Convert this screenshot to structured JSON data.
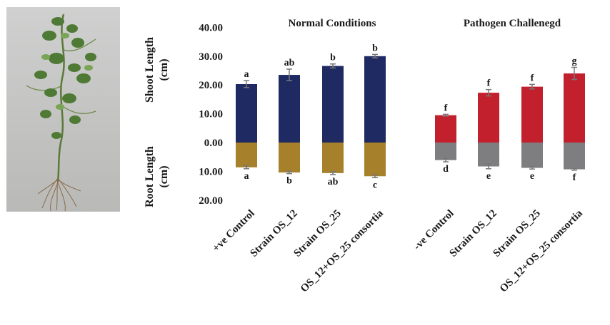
{
  "photo": {
    "icon": "pea-plant-photo"
  },
  "chart_data": {
    "type": "bar",
    "subtype": "diverging-stacked",
    "categories": [
      "+ve Control",
      "Strain OS_12",
      "Strain OS_25",
      "OS_12+OS_25 consortia",
      "-ve Control",
      "Strain OS_12",
      "Strain OS_25",
      "OS_12+OS_25 consortia"
    ],
    "groups": [
      "Normal Conditions",
      "Pathogen Challenegd"
    ],
    "group_of_category": [
      0,
      0,
      0,
      0,
      1,
      1,
      1,
      1
    ],
    "y_tick_labels": [
      "40.00",
      "30.00",
      "20.00",
      "10.00",
      "0.00",
      "10.00",
      "20.00"
    ],
    "y_tick_values": [
      40,
      30,
      20,
      10,
      0,
      -10,
      -20
    ],
    "ylim": [
      -20,
      40
    ],
    "ylabel_top": "Shoot Length (cm)",
    "ylabel_top_lines": [
      "Shoot Length",
      "(cm)"
    ],
    "ylabel_bottom": "Root Length (cm)",
    "ylabel_bottom_lines": [
      "Root Length",
      "(cm)"
    ],
    "grid": false,
    "series": [
      {
        "name": "Shoot Length",
        "values": [
          20.3,
          23.5,
          26.6,
          30.0,
          9.5,
          17.3,
          19.4,
          24.0
        ],
        "errors": [
          1.2,
          2.0,
          0.7,
          0.6,
          0.3,
          1.1,
          0.8,
          2.1
        ],
        "letters": [
          "a",
          "ab",
          "b",
          "b",
          "f",
          "f",
          "f",
          "g"
        ]
      },
      {
        "name": "Root Length",
        "values": [
          8.6,
          10.4,
          10.6,
          11.7,
          6.1,
          8.3,
          8.8,
          9.3
        ],
        "errors": [
          0.5,
          0.4,
          0.5,
          0.5,
          0.6,
          0.8,
          0.4,
          0.3
        ],
        "letters": [
          "a",
          "b",
          "ab",
          "c",
          "d",
          "e",
          "e",
          "f"
        ]
      }
    ],
    "colors": {
      "shoot_normal": "#1f2a63",
      "shoot_pathogen": "#c3202e",
      "root_normal": "#a6802a",
      "root_pathogen": "#7e7e80",
      "error_bar": "#777777"
    }
  }
}
